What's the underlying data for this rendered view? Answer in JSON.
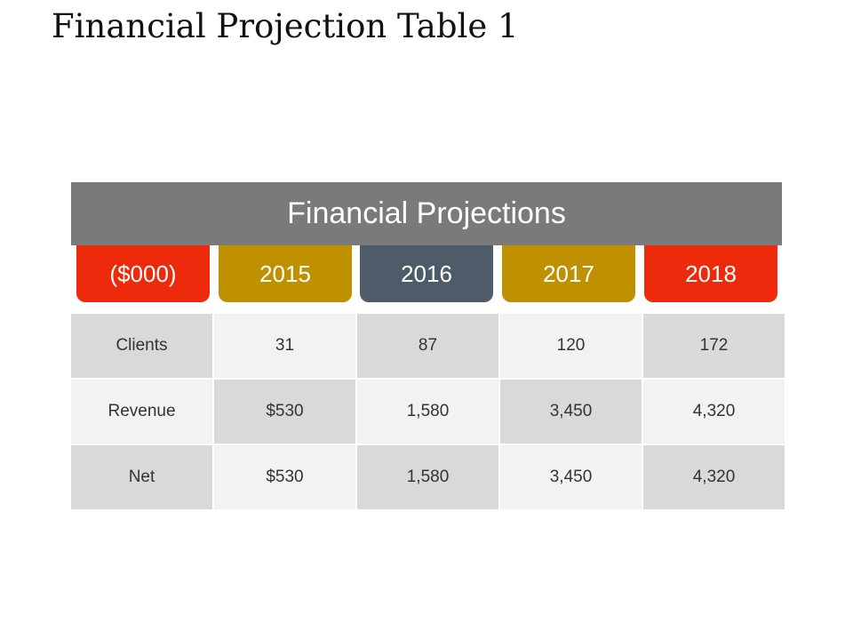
{
  "title": "Financial Projection Table 1",
  "banner": "Financial Projections",
  "headers": [
    {
      "label": "($000)",
      "color": "#ee2a0c"
    },
    {
      "label": "2015",
      "color": "#bf9000"
    },
    {
      "label": "2016",
      "color": "#4d5c68"
    },
    {
      "label": "2017",
      "color": "#bf9000"
    },
    {
      "label": "2018",
      "color": "#ee2a0c"
    }
  ],
  "rows": [
    {
      "label": "Clients",
      "values": [
        "31",
        "87",
        "120",
        "172"
      ]
    },
    {
      "label": "Revenue",
      "values": [
        "$530",
        "1,580",
        "3,450",
        "4,320"
      ]
    },
    {
      "label": "Net",
      "values": [
        "$530",
        "1,580",
        "3,450",
        "4,320"
      ]
    }
  ]
}
